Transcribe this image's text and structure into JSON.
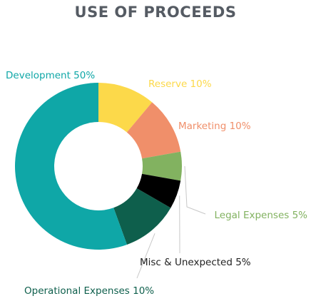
{
  "chart_data": {
    "type": "pie",
    "title": "USE OF PROCEEDS",
    "donut": true,
    "slices": [
      {
        "label": "Development 50%",
        "value": 50,
        "color": "#0fa7a7"
      },
      {
        "label": "Reserve 10%",
        "value": 10,
        "color": "#fcd94a"
      },
      {
        "label": "Marketing 10%",
        "value": 10,
        "color": "#f08f6a"
      },
      {
        "label": "Legal Expenses 5%",
        "value": 5,
        "color": "#82b260"
      },
      {
        "label": "Misc & Unexpected 5%",
        "value": 5,
        "color": "#000000"
      },
      {
        "label": "Operational Expenses 10%",
        "value": 10,
        "color": "#0e5f4c"
      }
    ],
    "label_colors": {
      "Development 50%": "#0fa7a7",
      "Reserve 10%": "#fcd94a",
      "Marketing 10%": "#f08f6a",
      "Legal Expenses 5%": "#82b260",
      "Misc & Unexpected 5%": "#222222",
      "Operational Expenses 10%": "#0e5f4c"
    }
  }
}
